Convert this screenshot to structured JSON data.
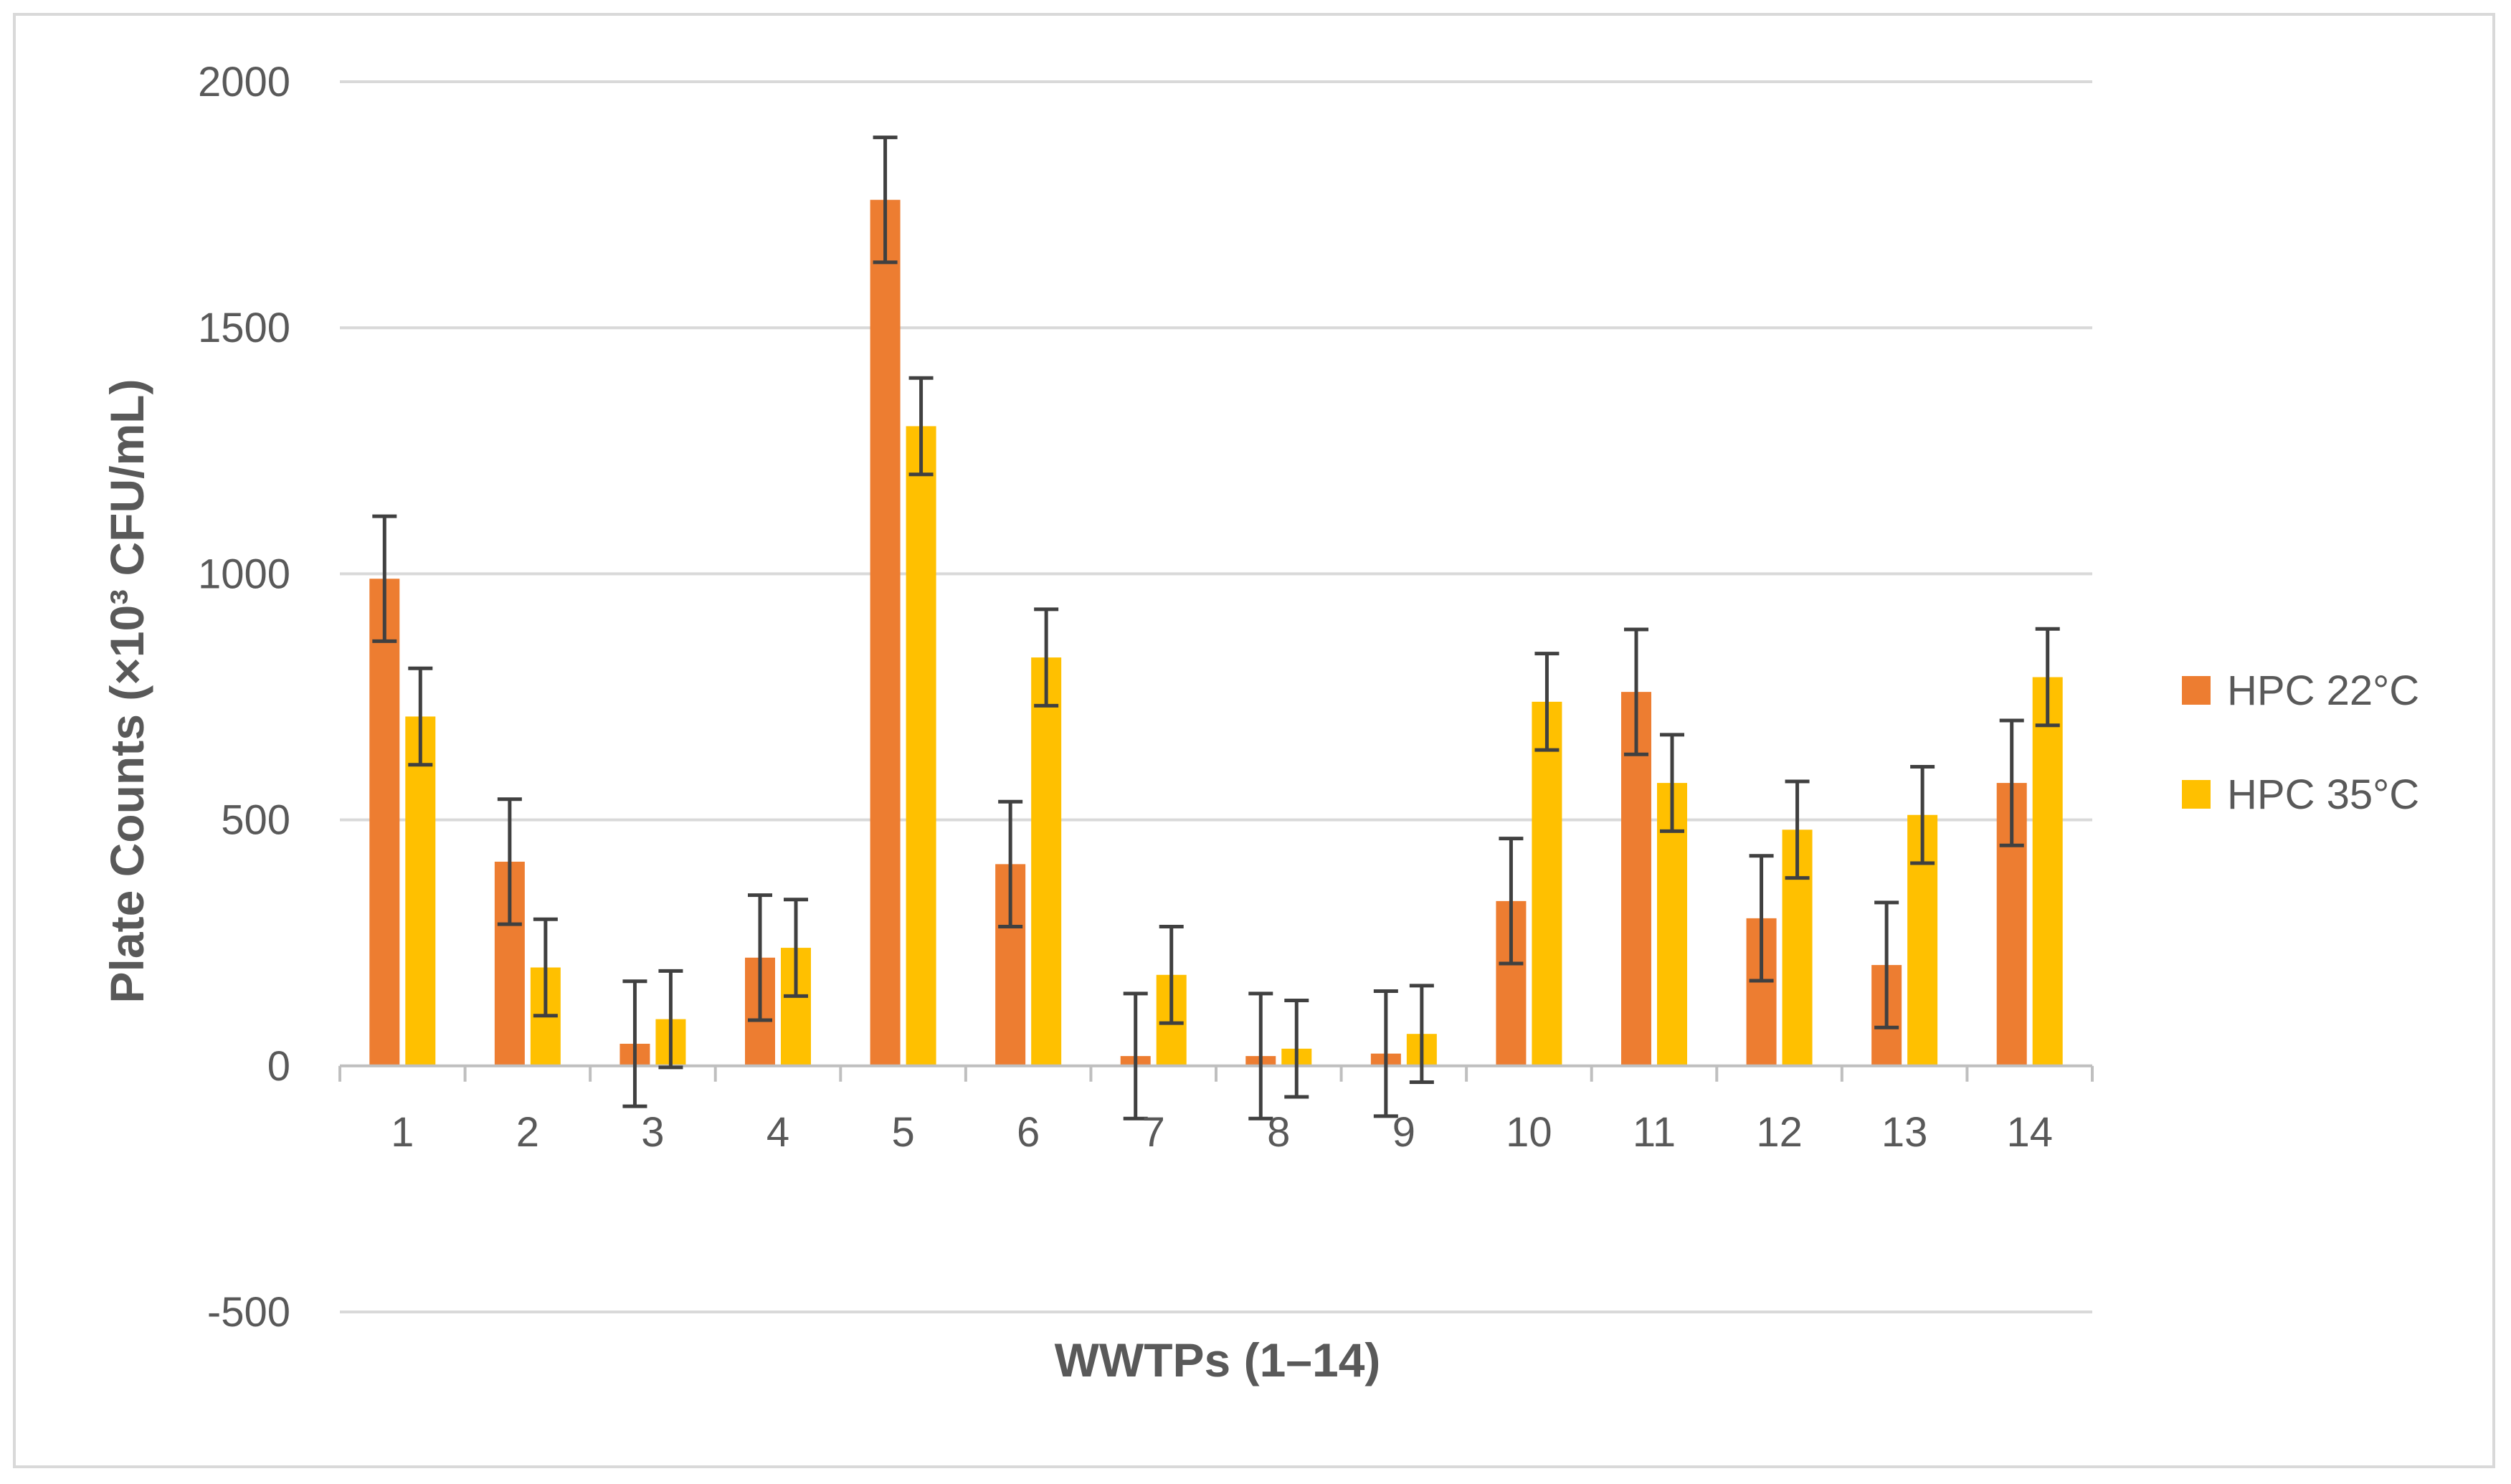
{
  "chart_data": {
    "type": "bar",
    "categories": [
      "1",
      "2",
      "3",
      "4",
      "5",
      "6",
      "7",
      "8",
      "9",
      "10",
      "11",
      "12",
      "13",
      "14"
    ],
    "series": [
      {
        "name": "HPC 22°C",
        "color": "#ed7d31",
        "values": [
          990,
          415,
          45,
          220,
          1760,
          410,
          20,
          20,
          25,
          335,
          760,
          300,
          205,
          575
        ],
        "errors": [
          127,
          127,
          127,
          127,
          127,
          127,
          127,
          127,
          127,
          127,
          127,
          127,
          127,
          127
        ]
      },
      {
        "name": "HPC 35°C",
        "color": "#ffc000",
        "values": [
          710,
          200,
          95,
          240,
          1300,
          830,
          185,
          35,
          65,
          740,
          575,
          480,
          510,
          790
        ],
        "errors": [
          98,
          98,
          98,
          98,
          98,
          98,
          98,
          98,
          98,
          98,
          98,
          98,
          98,
          98
        ]
      }
    ],
    "title": "",
    "xlabel": "WWTPs (1–14)",
    "ylabel": "Plate Counts (×10³ CFU/mL)",
    "ylim": [
      -500,
      2000
    ],
    "yticks": [
      "2000",
      "1500",
      "1000",
      "500",
      "0",
      "-500"
    ],
    "grid": true,
    "legend_position": "right",
    "errorbar_color": "#404040",
    "gridline_color": "#d9d9d9",
    "axis_color": "#bfbfbf"
  }
}
